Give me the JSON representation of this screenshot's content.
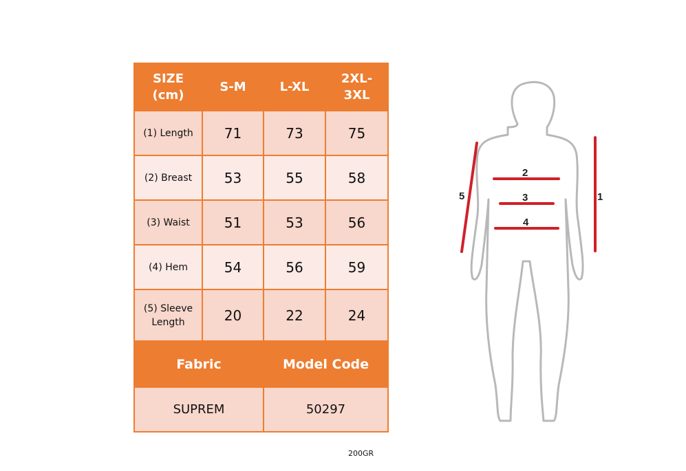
{
  "table": {
    "header": [
      "SIZE (cm)",
      "S-M",
      "L-XL",
      "2XL-3XL"
    ],
    "header_lines": [
      [
        "SIZE",
        "(cm)"
      ],
      [
        "S-M"
      ],
      [
        "L-XL"
      ],
      [
        "2XL-",
        "3XL"
      ]
    ],
    "rows": [
      {
        "label": "(1) Length",
        "values": [
          "71",
          "73",
          "75"
        ]
      },
      {
        "label": "(2) Breast",
        "values": [
          "53",
          "55",
          "58"
        ]
      },
      {
        "label": "(3) Waist",
        "values": [
          "51",
          "53",
          "56"
        ]
      },
      {
        "label": "(4) Hem",
        "values": [
          "54",
          "56",
          "59"
        ]
      },
      {
        "label_lines": [
          "(5) Sleeve",
          "Length"
        ],
        "label": "(5) Sleeve Length",
        "values": [
          "20",
          "22",
          "24"
        ]
      }
    ],
    "fabric_label": "Fabric",
    "model_code_label": "Model Code",
    "fabric_value": "SUPREM",
    "model_code_value": "50297"
  },
  "note": "200GR",
  "diagram": {
    "labels": [
      "1",
      "2",
      "3",
      "4",
      "5"
    ]
  },
  "colors": {
    "accent": "#ed7d31",
    "row_dark": "#f8d7cc",
    "row_light": "#fbeae5",
    "measure_line": "#d0202a",
    "outline": "#b8b8b8"
  }
}
